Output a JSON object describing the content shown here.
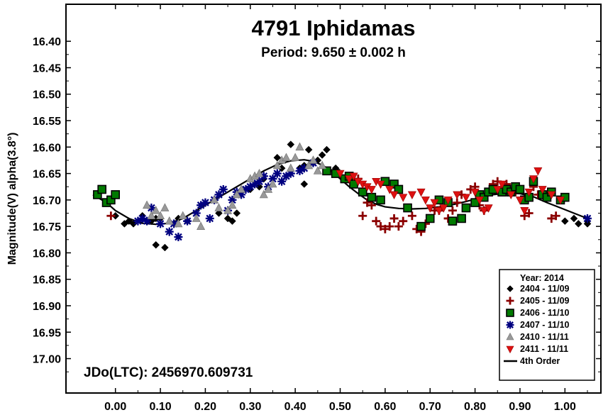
{
  "chart_data": {
    "type": "scatter",
    "title": "4791 Iphidamas",
    "subtitle": "Period: 9.650 ± 0.002 h",
    "ylabel": "Magnitude(V) alpha(3.8°)",
    "xlabel": "",
    "annotation": "JDo(LTC): 2456970.609731",
    "xlim": [
      -0.11,
      1.08
    ],
    "ylim": [
      17.065,
      16.33
    ],
    "y_inverted": true,
    "x_ticks": [
      "0.00",
      "0.10",
      "0.20",
      "0.30",
      "0.40",
      "0.50",
      "0.60",
      "0.70",
      "0.80",
      "0.90",
      "1.00"
    ],
    "y_ticks": [
      "16.40",
      "16.45",
      "16.50",
      "16.55",
      "16.60",
      "16.65",
      "16.70",
      "16.75",
      "16.80",
      "16.85",
      "16.90",
      "16.95",
      "17.00"
    ],
    "legend": {
      "title": "Year: 2014",
      "placement": "bottom-right",
      "entries": [
        "2404 - 11/09",
        "2405 - 11/09",
        "2406 - 11/10",
        "2407 - 11/10",
        "2410 - 11/11",
        "2411 - 11/11",
        "4th Order"
      ]
    },
    "colors": {
      "s2404": "#000000",
      "s2405": "#8b0000",
      "s2406": "#007a00",
      "s2407": "#000080",
      "s2410": "#999999",
      "s2411": "#dd1111",
      "fit": "#000000"
    },
    "series": [
      {
        "name": "2404 - 11/09",
        "marker": "diamond",
        "points": [
          [
            0.0,
            16.73
          ],
          [
            0.02,
            16.745
          ],
          [
            0.03,
            16.74
          ],
          [
            0.04,
            16.745
          ],
          [
            0.06,
            16.73
          ],
          [
            0.08,
            16.74
          ],
          [
            0.09,
            16.735
          ],
          [
            0.1,
            16.735
          ],
          [
            0.09,
            16.785
          ],
          [
            0.11,
            16.79
          ],
          [
            0.14,
            16.735
          ],
          [
            0.16,
            16.74
          ],
          [
            0.23,
            16.725
          ],
          [
            0.25,
            16.735
          ],
          [
            0.26,
            16.74
          ],
          [
            0.27,
            16.725
          ],
          [
            0.3,
            16.68
          ],
          [
            0.32,
            16.675
          ],
          [
            0.33,
            16.66
          ],
          [
            0.36,
            16.62
          ],
          [
            0.37,
            16.64
          ],
          [
            0.39,
            16.595
          ],
          [
            0.41,
            16.64
          ],
          [
            0.42,
            16.635
          ],
          [
            0.43,
            16.605
          ],
          [
            0.44,
            16.63
          ],
          [
            0.45,
            16.625
          ],
          [
            0.46,
            16.615
          ],
          [
            0.47,
            16.605
          ],
          [
            0.42,
            16.67
          ],
          [
            0.49,
            16.64
          ],
          [
            1.0,
            16.74
          ],
          [
            1.02,
            16.735
          ],
          [
            1.03,
            16.745
          ],
          [
            1.05,
            16.74
          ],
          [
            1.05,
            16.745
          ]
        ]
      },
      {
        "name": "2405 - 11/09",
        "marker": "plus",
        "points": [
          [
            -0.01,
            16.73
          ],
          [
            0.52,
            16.655
          ],
          [
            0.54,
            16.66
          ],
          [
            0.55,
            16.73
          ],
          [
            0.56,
            16.705
          ],
          [
            0.57,
            16.71
          ],
          [
            0.58,
            16.74
          ],
          [
            0.59,
            16.75
          ],
          [
            0.6,
            16.755
          ],
          [
            0.61,
            16.75
          ],
          [
            0.62,
            16.735
          ],
          [
            0.63,
            16.75
          ],
          [
            0.64,
            16.74
          ],
          [
            0.66,
            16.73
          ],
          [
            0.67,
            16.755
          ],
          [
            0.68,
            16.76
          ],
          [
            0.69,
            16.745
          ],
          [
            0.71,
            16.72
          ],
          [
            0.72,
            16.72
          ],
          [
            0.74,
            16.735
          ],
          [
            0.75,
            16.72
          ],
          [
            0.76,
            16.705
          ],
          [
            0.77,
            16.69
          ],
          [
            0.79,
            16.68
          ],
          [
            0.8,
            16.675
          ],
          [
            0.81,
            16.71
          ],
          [
            0.82,
            16.72
          ],
          [
            0.84,
            16.67
          ],
          [
            0.85,
            16.665
          ],
          [
            0.87,
            16.67
          ],
          [
            0.89,
            16.685
          ],
          [
            0.91,
            16.73
          ],
          [
            0.92,
            16.725
          ],
          [
            0.97,
            16.735
          ],
          [
            0.98,
            16.73
          ],
          [
            0.93,
            16.675
          ],
          [
            0.94,
            16.69
          ]
        ]
      },
      {
        "name": "2406 - 11/10",
        "marker": "square",
        "points": [
          [
            -0.04,
            16.69
          ],
          [
            -0.03,
            16.68
          ],
          [
            -0.02,
            16.705
          ],
          [
            -0.01,
            16.7
          ],
          [
            0.0,
            16.69
          ],
          [
            0.47,
            16.645
          ],
          [
            0.49,
            16.65
          ],
          [
            0.51,
            16.66
          ],
          [
            0.52,
            16.655
          ],
          [
            0.53,
            16.67
          ],
          [
            0.55,
            16.685
          ],
          [
            0.57,
            16.695
          ],
          [
            0.59,
            16.7
          ],
          [
            0.6,
            16.665
          ],
          [
            0.62,
            16.67
          ],
          [
            0.63,
            16.68
          ],
          [
            0.65,
            16.715
          ],
          [
            0.68,
            16.75
          ],
          [
            0.7,
            16.735
          ],
          [
            0.72,
            16.7
          ],
          [
            0.74,
            16.705
          ],
          [
            0.75,
            16.74
          ],
          [
            0.77,
            16.735
          ],
          [
            0.78,
            16.715
          ],
          [
            0.8,
            16.705
          ],
          [
            0.81,
            16.69
          ],
          [
            0.82,
            16.695
          ],
          [
            0.83,
            16.685
          ],
          [
            0.84,
            16.68
          ],
          [
            0.86,
            16.685
          ],
          [
            0.87,
            16.68
          ],
          [
            0.88,
            16.685
          ],
          [
            0.89,
            16.675
          ],
          [
            0.9,
            16.68
          ],
          [
            0.91,
            16.7
          ],
          [
            0.92,
            16.695
          ],
          [
            0.93,
            16.665
          ],
          [
            0.95,
            16.69
          ],
          [
            0.96,
            16.695
          ],
          [
            0.97,
            16.685
          ],
          [
            0.99,
            16.7
          ],
          [
            1.0,
            16.695
          ]
        ]
      },
      {
        "name": "2407 - 11/10",
        "marker": "asterisk",
        "points": [
          [
            0.05,
            16.74
          ],
          [
            0.06,
            16.735
          ],
          [
            0.07,
            16.74
          ],
          [
            0.08,
            16.715
          ],
          [
            0.1,
            16.745
          ],
          [
            0.12,
            16.76
          ],
          [
            0.13,
            16.745
          ],
          [
            0.14,
            16.77
          ],
          [
            0.16,
            16.74
          ],
          [
            0.18,
            16.725
          ],
          [
            0.19,
            16.71
          ],
          [
            0.2,
            16.705
          ],
          [
            0.21,
            16.735
          ],
          [
            0.22,
            16.7
          ],
          [
            0.23,
            16.69
          ],
          [
            0.24,
            16.68
          ],
          [
            0.25,
            16.72
          ],
          [
            0.26,
            16.7
          ],
          [
            0.27,
            16.685
          ],
          [
            0.28,
            16.69
          ],
          [
            0.29,
            16.68
          ],
          [
            0.3,
            16.675
          ],
          [
            0.31,
            16.67
          ],
          [
            0.32,
            16.665
          ],
          [
            0.33,
            16.655
          ],
          [
            0.34,
            16.675
          ],
          [
            0.35,
            16.66
          ],
          [
            0.36,
            16.65
          ],
          [
            0.37,
            16.665
          ],
          [
            0.38,
            16.655
          ],
          [
            0.39,
            16.65
          ],
          [
            0.41,
            16.645
          ],
          [
            0.42,
            16.64
          ],
          [
            0.44,
            16.63
          ],
          [
            1.05,
            16.735
          ]
        ]
      },
      {
        "name": "2410 - 11/11",
        "marker": "triangle",
        "points": [
          [
            0.07,
            16.71
          ],
          [
            0.08,
            16.73
          ],
          [
            0.09,
            16.72
          ],
          [
            0.1,
            16.73
          ],
          [
            0.11,
            16.715
          ],
          [
            0.12,
            16.74
          ],
          [
            0.14,
            16.745
          ],
          [
            0.15,
            16.73
          ],
          [
            0.18,
            16.735
          ],
          [
            0.19,
            16.75
          ],
          [
            0.22,
            16.7
          ],
          [
            0.23,
            16.715
          ],
          [
            0.25,
            16.72
          ],
          [
            0.26,
            16.71
          ],
          [
            0.27,
            16.69
          ],
          [
            0.28,
            16.68
          ],
          [
            0.3,
            16.66
          ],
          [
            0.31,
            16.655
          ],
          [
            0.32,
            16.65
          ],
          [
            0.33,
            16.69
          ],
          [
            0.34,
            16.68
          ],
          [
            0.35,
            16.67
          ],
          [
            0.36,
            16.635
          ],
          [
            0.37,
            16.625
          ],
          [
            0.38,
            16.62
          ],
          [
            0.39,
            16.64
          ],
          [
            0.4,
            16.62
          ],
          [
            0.41,
            16.6
          ],
          [
            0.43,
            16.635
          ],
          [
            0.44,
            16.625
          ],
          [
            0.45,
            16.645
          ],
          [
            0.46,
            16.635
          ]
        ]
      },
      {
        "name": "2411 - 11/11",
        "marker": "triangle-down",
        "points": [
          [
            0.5,
            16.65
          ],
          [
            0.52,
            16.66
          ],
          [
            0.53,
            16.655
          ],
          [
            0.54,
            16.665
          ],
          [
            0.55,
            16.67
          ],
          [
            0.56,
            16.675
          ],
          [
            0.57,
            16.68
          ],
          [
            0.58,
            16.665
          ],
          [
            0.59,
            16.67
          ],
          [
            0.61,
            16.68
          ],
          [
            0.62,
            16.69
          ],
          [
            0.64,
            16.695
          ],
          [
            0.66,
            16.69
          ],
          [
            0.68,
            16.685
          ],
          [
            0.69,
            16.7
          ],
          [
            0.7,
            16.715
          ],
          [
            0.71,
            16.705
          ],
          [
            0.72,
            16.72
          ],
          [
            0.73,
            16.715
          ],
          [
            0.74,
            16.7
          ],
          [
            0.76,
            16.69
          ],
          [
            0.78,
            16.695
          ],
          [
            0.8,
            16.685
          ],
          [
            0.81,
            16.7
          ],
          [
            0.82,
            16.72
          ],
          [
            0.83,
            16.715
          ],
          [
            0.85,
            16.68
          ],
          [
            0.86,
            16.67
          ],
          [
            0.88,
            16.69
          ],
          [
            0.9,
            16.7
          ],
          [
            0.91,
            16.72
          ],
          [
            0.92,
            16.685
          ],
          [
            0.93,
            16.66
          ],
          [
            0.94,
            16.645
          ],
          [
            0.95,
            16.68
          ],
          [
            0.97,
            16.69
          ],
          [
            0.99,
            16.7
          ]
        ]
      },
      {
        "name": "4th Order",
        "marker": "line",
        "points": [
          [
            -0.05,
            16.69
          ],
          [
            -0.02,
            16.705
          ],
          [
            0.0,
            16.72
          ],
          [
            0.03,
            16.735
          ],
          [
            0.06,
            16.744
          ],
          [
            0.09,
            16.746
          ],
          [
            0.12,
            16.744
          ],
          [
            0.15,
            16.735
          ],
          [
            0.18,
            16.72
          ],
          [
            0.21,
            16.705
          ],
          [
            0.24,
            16.69
          ],
          [
            0.27,
            16.675
          ],
          [
            0.3,
            16.66
          ],
          [
            0.33,
            16.645
          ],
          [
            0.36,
            16.633
          ],
          [
            0.39,
            16.626
          ],
          [
            0.42,
            16.624
          ],
          [
            0.44,
            16.627
          ],
          [
            0.46,
            16.634
          ],
          [
            0.48,
            16.645
          ],
          [
            0.5,
            16.66
          ],
          [
            0.52,
            16.675
          ],
          [
            0.54,
            16.688
          ],
          [
            0.56,
            16.7
          ],
          [
            0.58,
            16.708
          ],
          [
            0.6,
            16.713
          ],
          [
            0.63,
            16.716
          ],
          [
            0.66,
            16.717
          ],
          [
            0.69,
            16.716
          ],
          [
            0.72,
            16.713
          ],
          [
            0.75,
            16.709
          ],
          [
            0.78,
            16.703
          ],
          [
            0.81,
            16.696
          ],
          [
            0.84,
            16.69
          ],
          [
            0.87,
            16.687
          ],
          [
            0.9,
            16.688
          ],
          [
            0.93,
            16.694
          ],
          [
            0.96,
            16.705
          ],
          [
            0.99,
            16.715
          ],
          [
            1.02,
            16.725
          ],
          [
            1.05,
            16.735
          ]
        ]
      }
    ]
  }
}
